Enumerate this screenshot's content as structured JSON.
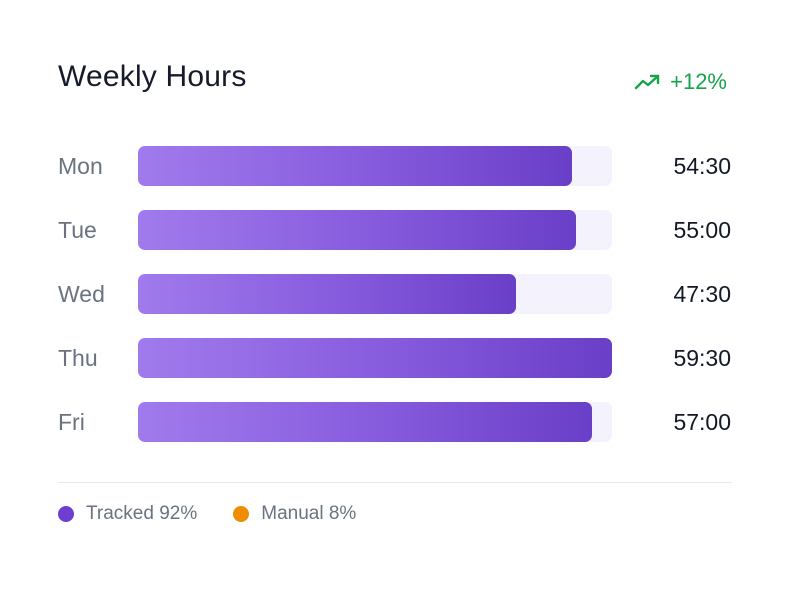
{
  "header": {
    "title": "Weekly Hours",
    "trend_text": "+12%",
    "trend_icon": "trending-up-icon",
    "trend_color": "#16a34a"
  },
  "chart_data": {
    "type": "bar",
    "orientation": "horizontal",
    "categories": [
      "Mon",
      "Tue",
      "Wed",
      "Thu",
      "Fri"
    ],
    "value_labels": [
      "54:30",
      "55:00",
      "47:30",
      "59:30",
      "57:00"
    ],
    "values_hours": [
      54.5,
      55.0,
      47.5,
      59.5,
      57.0
    ],
    "xlim": [
      0,
      59.5
    ],
    "title": "Weekly Hours",
    "bar_color_start": "#a07bec",
    "bar_color_end": "#6a3fc8",
    "track_color": "#f4f2fd",
    "legend": [
      {
        "label": "Tracked 92%",
        "color": "#6d3fd0"
      },
      {
        "label": "Manual 8%",
        "color": "#f08c00"
      }
    ],
    "legend_position": "bottom-left",
    "grid": false
  }
}
